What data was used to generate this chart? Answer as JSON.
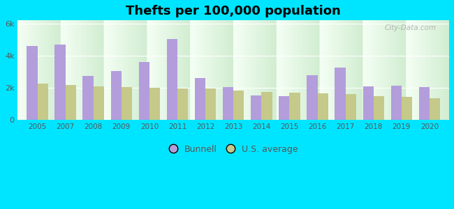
{
  "title": "Thefts per 100,000 population",
  "years": [
    2005,
    2007,
    2008,
    2009,
    2010,
    2011,
    2012,
    2013,
    2014,
    2015,
    2016,
    2017,
    2018,
    2019,
    2020
  ],
  "bunnell": [
    4600,
    4700,
    2750,
    3050,
    3600,
    5050,
    2600,
    2050,
    1550,
    1500,
    2800,
    3250,
    2100,
    2150,
    2050
  ],
  "us_average": [
    2250,
    2200,
    2100,
    2050,
    2000,
    1950,
    1950,
    1850,
    1750,
    1700,
    1650,
    1600,
    1500,
    1450,
    1350
  ],
  "bunnell_color": "#b39ddb",
  "us_avg_color": "#c5c98a",
  "outer_background": "#00e5ff",
  "ylim": [
    0,
    6200
  ],
  "yticks": [
    0,
    2000,
    4000,
    6000
  ],
  "ytick_labels": [
    "0",
    "2k",
    "4k",
    "6k"
  ],
  "bar_width": 0.38,
  "title_fontsize": 13,
  "tick_color": "#555555",
  "legend_fontsize": 9,
  "watermark": "City-Data.com"
}
